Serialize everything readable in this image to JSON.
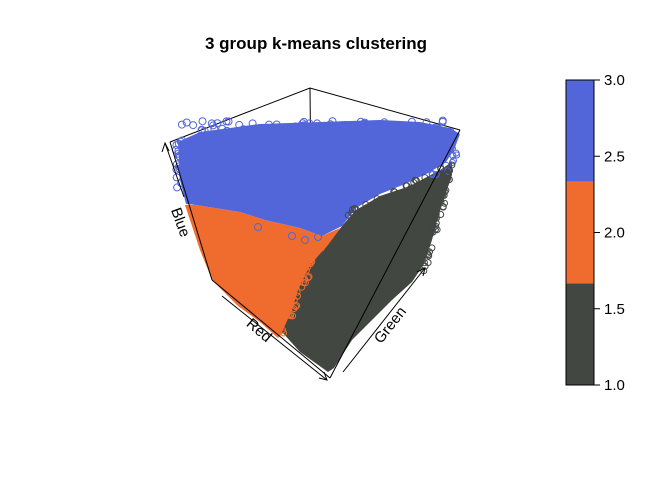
{
  "chart_data": {
    "type": "scatter",
    "title": "3 group k-means clustering",
    "axes": {
      "x_label": "Red",
      "y_label": "Green",
      "z_label": "Blue"
    },
    "colorbar": {
      "range": [
        1.0,
        3.0
      ],
      "ticks": [
        "1.0",
        "1.5",
        "2.0",
        "2.5",
        "3.0"
      ],
      "tick_values": [
        1.0,
        1.5,
        2.0,
        2.5,
        3.0
      ],
      "bands": [
        {
          "from": 1.0,
          "to": 1.6667,
          "color": "#434742"
        },
        {
          "from": 1.6667,
          "to": 2.3333,
          "color": "#ef6c2e"
        },
        {
          "from": 2.3333,
          "to": 3.0,
          "color": "#5266d9"
        }
      ]
    },
    "clusters": [
      {
        "value": 1,
        "color": "#434742"
      },
      {
        "value": 2,
        "color": "#ef6c2e"
      },
      {
        "value": 3,
        "color": "#5266d9"
      }
    ]
  }
}
